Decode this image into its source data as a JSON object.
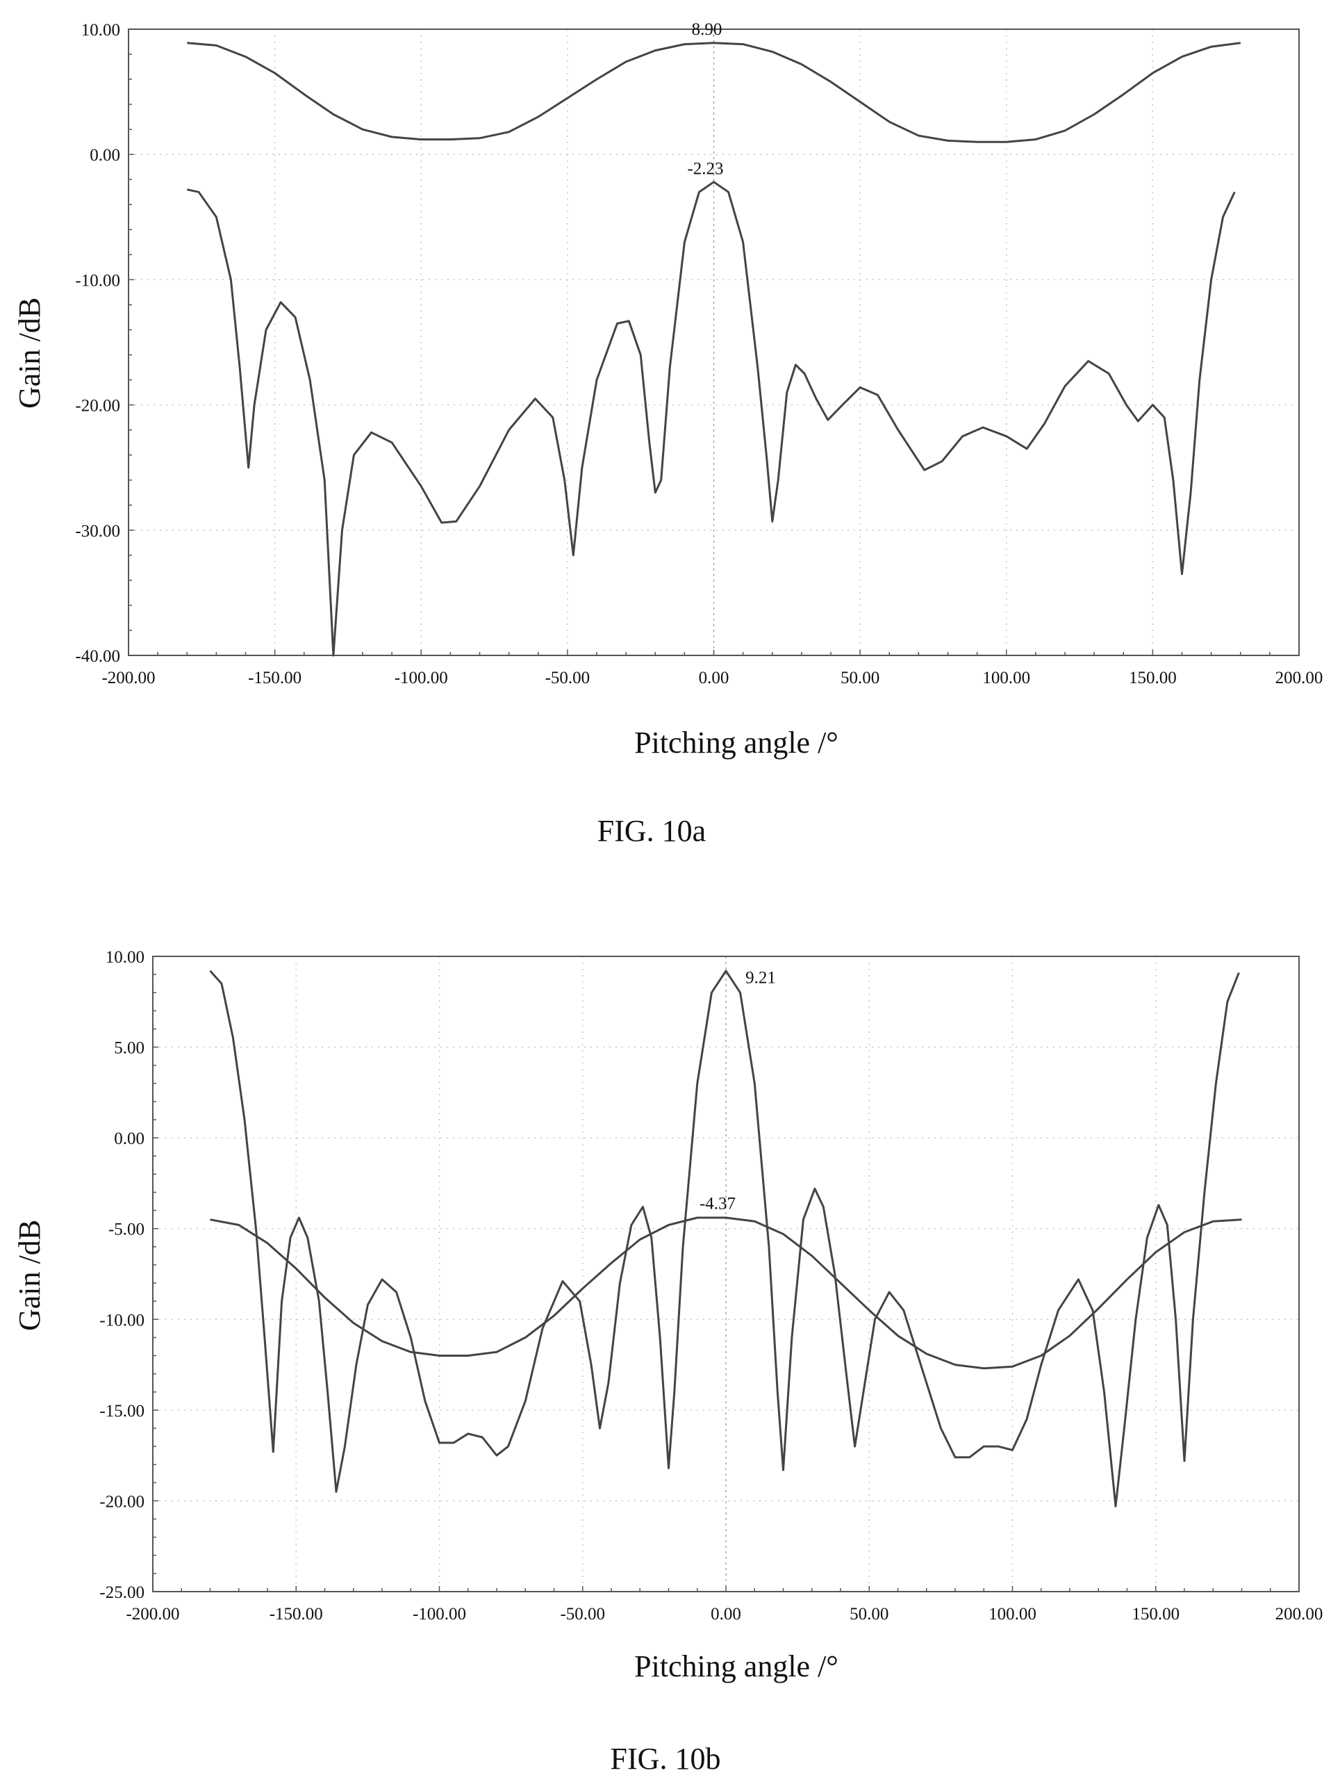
{
  "chart_data": [
    {
      "type": "line",
      "figure_label": "FIG. 10a",
      "xlabel": "Pitching angle /°",
      "ylabel": "Gain /dB",
      "xlim": [
        -200,
        200
      ],
      "ylim": [
        -40,
        10
      ],
      "x_ticks": [
        "-200.00",
        "-150.00",
        "-100.00",
        "-50.00",
        "0.00",
        "50.00",
        "100.00",
        "150.00",
        "200.00"
      ],
      "y_ticks": [
        "10.00",
        "0.00",
        "-10.00",
        "-20.00",
        "-30.00",
        "-40.00"
      ],
      "grid": true,
      "series": [
        {
          "points": [
            [
              -180,
              8.9
            ],
            [
              -170,
              8.7
            ],
            [
              -160,
              7.8
            ],
            [
              -150,
              6.5
            ],
            [
              -140,
              4.8
            ],
            [
              -130,
              3.2
            ],
            [
              -120,
              2.0
            ],
            [
              -110,
              1.4
            ],
            [
              -100,
              1.2
            ],
            [
              -90,
              1.2
            ],
            [
              -80,
              1.3
            ],
            [
              -70,
              1.8
            ],
            [
              -60,
              3.0
            ],
            [
              -50,
              4.5
            ],
            [
              -40,
              6.0
            ],
            [
              -30,
              7.4
            ],
            [
              -20,
              8.3
            ],
            [
              -10,
              8.8
            ],
            [
              0,
              8.9
            ],
            [
              10,
              8.8
            ],
            [
              20,
              8.2
            ],
            [
              30,
              7.2
            ],
            [
              40,
              5.8
            ],
            [
              50,
              4.2
            ],
            [
              60,
              2.6
            ],
            [
              70,
              1.5
            ],
            [
              80,
              1.1
            ],
            [
              90,
              1.0
            ],
            [
              100,
              1.0
            ],
            [
              110,
              1.2
            ],
            [
              120,
              1.9
            ],
            [
              130,
              3.2
            ],
            [
              140,
              4.8
            ],
            [
              150,
              6.5
            ],
            [
              160,
              7.8
            ],
            [
              170,
              8.6
            ],
            [
              180,
              8.9
            ]
          ]
        },
        {
          "points": [
            [
              -180,
              -2.8
            ],
            [
              -176,
              -3.0
            ],
            [
              -170,
              -5
            ],
            [
              -165,
              -10
            ],
            [
              -162,
              -17
            ],
            [
              -159,
              -25
            ],
            [
              -157,
              -20
            ],
            [
              -153,
              -14
            ],
            [
              -148,
              -11.8
            ],
            [
              -143,
              -13
            ],
            [
              -138,
              -18
            ],
            [
              -133,
              -26
            ],
            [
              -130,
              -40
            ],
            [
              -127,
              -30
            ],
            [
              -123,
              -24
            ],
            [
              -117,
              -22.2
            ],
            [
              -110,
              -23
            ],
            [
              -100,
              -26.5
            ],
            [
              -93,
              -29.4
            ],
            [
              -88,
              -29.3
            ],
            [
              -80,
              -26.5
            ],
            [
              -70,
              -22
            ],
            [
              -61,
              -19.5
            ],
            [
              -55,
              -21
            ],
            [
              -51,
              -26
            ],
            [
              -48,
              -32
            ],
            [
              -45,
              -25
            ],
            [
              -40,
              -18
            ],
            [
              -33,
              -13.5
            ],
            [
              -29,
              -13.3
            ],
            [
              -25,
              -16
            ],
            [
              -22,
              -23
            ],
            [
              -20,
              -27
            ],
            [
              -18,
              -26
            ],
            [
              -15,
              -17
            ],
            [
              -10,
              -7
            ],
            [
              -5,
              -3
            ],
            [
              0,
              -2.2
            ],
            [
              5,
              -3
            ],
            [
              10,
              -7
            ],
            [
              15,
              -17
            ],
            [
              18,
              -24
            ],
            [
              20,
              -29.3
            ],
            [
              22,
              -26
            ],
            [
              25,
              -19
            ],
            [
              28,
              -16.8
            ],
            [
              31,
              -17.5
            ],
            [
              35,
              -19.5
            ],
            [
              39,
              -21.2
            ],
            [
              44,
              -20
            ],
            [
              50,
              -18.6
            ],
            [
              56,
              -19.2
            ],
            [
              63,
              -22
            ],
            [
              72,
              -25.2
            ],
            [
              78,
              -24.5
            ],
            [
              85,
              -22.5
            ],
            [
              92,
              -21.8
            ],
            [
              100,
              -22.5
            ],
            [
              107,
              -23.5
            ],
            [
              113,
              -21.5
            ],
            [
              120,
              -18.5
            ],
            [
              128,
              -16.5
            ],
            [
              135,
              -17.5
            ],
            [
              141,
              -20
            ],
            [
              145,
              -21.3
            ],
            [
              150,
              -20
            ],
            [
              154,
              -21
            ],
            [
              157,
              -26
            ],
            [
              160,
              -33.5
            ],
            [
              163,
              -27
            ],
            [
              166,
              -18
            ],
            [
              170,
              -10
            ],
            [
              174,
              -5
            ],
            [
              178,
              -3
            ]
          ]
        }
      ],
      "annotations": [
        {
          "text": "8.90",
          "x": 0,
          "y": 8.9
        },
        {
          "text": "-2.23",
          "x": 0,
          "y": -2.23
        }
      ]
    },
    {
      "type": "line",
      "figure_label": "FIG. 10b",
      "xlabel": "Pitching angle /°",
      "ylabel": "Gain /dB",
      "xlim": [
        -200,
        200
      ],
      "ylim": [
        -25,
        10
      ],
      "x_ticks": [
        "-200.00",
        "-150.00",
        "-100.00",
        "-50.00",
        "0.00",
        "50.00",
        "100.00",
        "150.00",
        "200.00"
      ],
      "y_ticks": [
        "10.00",
        "5.00",
        "0.00",
        "-5.00",
        "-10.00",
        "-15.00",
        "-20.00",
        "-25.00"
      ],
      "grid": true,
      "series": [
        {
          "points": [
            [
              -180,
              9.2
            ],
            [
              -176,
              8.5
            ],
            [
              -172,
              5.5
            ],
            [
              -168,
              1
            ],
            [
              -164,
              -5
            ],
            [
              -161,
              -11
            ],
            [
              -158,
              -17.3
            ],
            [
              -155,
              -9
            ],
            [
              -152,
              -5.5
            ],
            [
              -149,
              -4.4
            ],
            [
              -146,
              -5.5
            ],
            [
              -142,
              -9
            ],
            [
              -139,
              -14
            ],
            [
              -136,
              -19.5
            ],
            [
              -133,
              -17
            ],
            [
              -129,
              -12.5
            ],
            [
              -125,
              -9.2
            ],
            [
              -120,
              -7.8
            ],
            [
              -115,
              -8.5
            ],
            [
              -110,
              -11
            ],
            [
              -105,
              -14.5
            ],
            [
              -100,
              -16.8
            ],
            [
              -95,
              -16.8
            ],
            [
              -90,
              -16.3
            ],
            [
              -85,
              -16.5
            ],
            [
              -80,
              -17.5
            ],
            [
              -76,
              -17
            ],
            [
              -70,
              -14.5
            ],
            [
              -64,
              -10.5
            ],
            [
              -57,
              -7.9
            ],
            [
              -51,
              -9
            ],
            [
              -47,
              -12.5
            ],
            [
              -44,
              -16
            ],
            [
              -41,
              -13.5
            ],
            [
              -37,
              -8
            ],
            [
              -33,
              -4.8
            ],
            [
              -29,
              -3.8
            ],
            [
              -26,
              -5.5
            ],
            [
              -23,
              -11
            ],
            [
              -20,
              -18.2
            ],
            [
              -18,
              -14
            ],
            [
              -15,
              -6
            ],
            [
              -10,
              3
            ],
            [
              -5,
              8
            ],
            [
              0,
              9.2
            ],
            [
              5,
              8
            ],
            [
              10,
              3
            ],
            [
              15,
              -6
            ],
            [
              18,
              -14
            ],
            [
              20,
              -18.3
            ],
            [
              23,
              -11
            ],
            [
              27,
              -4.5
            ],
            [
              31,
              -2.8
            ],
            [
              34,
              -3.8
            ],
            [
              38,
              -7.5
            ],
            [
              42,
              -13
            ],
            [
              45,
              -17
            ],
            [
              48,
              -14
            ],
            [
              52,
              -10
            ],
            [
              57,
              -8.5
            ],
            [
              62,
              -9.5
            ],
            [
              68,
              -12.5
            ],
            [
              75,
              -16
            ],
            [
              80,
              -17.6
            ],
            [
              85,
              -17.6
            ],
            [
              90,
              -17.0
            ],
            [
              95,
              -17.0
            ],
            [
              100,
              -17.2
            ],
            [
              105,
              -15.5
            ],
            [
              110,
              -12.5
            ],
            [
              116,
              -9.5
            ],
            [
              123,
              -7.8
            ],
            [
              128,
              -9.5
            ],
            [
              132,
              -14
            ],
            [
              136,
              -20.3
            ],
            [
              139,
              -16
            ],
            [
              143,
              -10
            ],
            [
              147,
              -5.5
            ],
            [
              151,
              -3.7
            ],
            [
              154,
              -4.8
            ],
            [
              157,
              -10
            ],
            [
              160,
              -17.8
            ],
            [
              163,
              -10
            ],
            [
              167,
              -3
            ],
            [
              171,
              3
            ],
            [
              175,
              7.5
            ],
            [
              179,
              9.1
            ]
          ]
        },
        {
          "points": [
            [
              -180,
              -4.5
            ],
            [
              -170,
              -4.8
            ],
            [
              -160,
              -5.8
            ],
            [
              -150,
              -7.2
            ],
            [
              -140,
              -8.8
            ],
            [
              -130,
              -10.2
            ],
            [
              -120,
              -11.2
            ],
            [
              -110,
              -11.8
            ],
            [
              -100,
              -12.0
            ],
            [
              -90,
              -12.0
            ],
            [
              -80,
              -11.8
            ],
            [
              -70,
              -11.0
            ],
            [
              -60,
              -9.8
            ],
            [
              -50,
              -8.3
            ],
            [
              -40,
              -6.9
            ],
            [
              -30,
              -5.6
            ],
            [
              -20,
              -4.8
            ],
            [
              -10,
              -4.4
            ],
            [
              0,
              -4.4
            ],
            [
              10,
              -4.6
            ],
            [
              20,
              -5.3
            ],
            [
              30,
              -6.5
            ],
            [
              40,
              -8.0
            ],
            [
              50,
              -9.5
            ],
            [
              60,
              -10.9
            ],
            [
              70,
              -11.9
            ],
            [
              80,
              -12.5
            ],
            [
              90,
              -12.7
            ],
            [
              100,
              -12.6
            ],
            [
              110,
              -12.0
            ],
            [
              120,
              -10.9
            ],
            [
              130,
              -9.4
            ],
            [
              140,
              -7.8
            ],
            [
              150,
              -6.3
            ],
            [
              160,
              -5.2
            ],
            [
              170,
              -4.6
            ],
            [
              180,
              -4.5
            ]
          ]
        }
      ],
      "annotations": [
        {
          "text": "9.21",
          "x": 0,
          "y": 9.21
        },
        {
          "text": "-4.37",
          "x": 0,
          "y": -4.37
        }
      ]
    }
  ]
}
